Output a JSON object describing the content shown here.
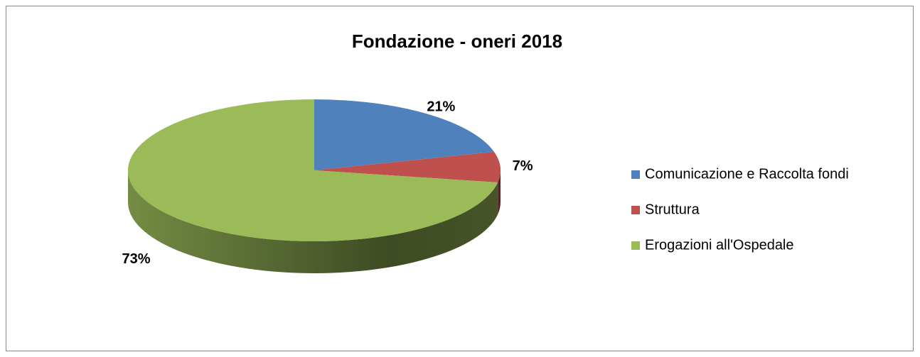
{
  "chart_data": {
    "type": "pie",
    "title": "Fondazione - oneri  2018",
    "categories": [
      "Comunicazione e Raccolta fondi",
      "Struttura",
      "Erogazioni all'Ospedale"
    ],
    "values": [
      21,
      7,
      73
    ],
    "value_labels": [
      "21%",
      "7%",
      "73%"
    ],
    "colors": [
      "#4f81bd",
      "#c0504d",
      "#9bbb59"
    ],
    "legend": "right",
    "3d": true
  }
}
